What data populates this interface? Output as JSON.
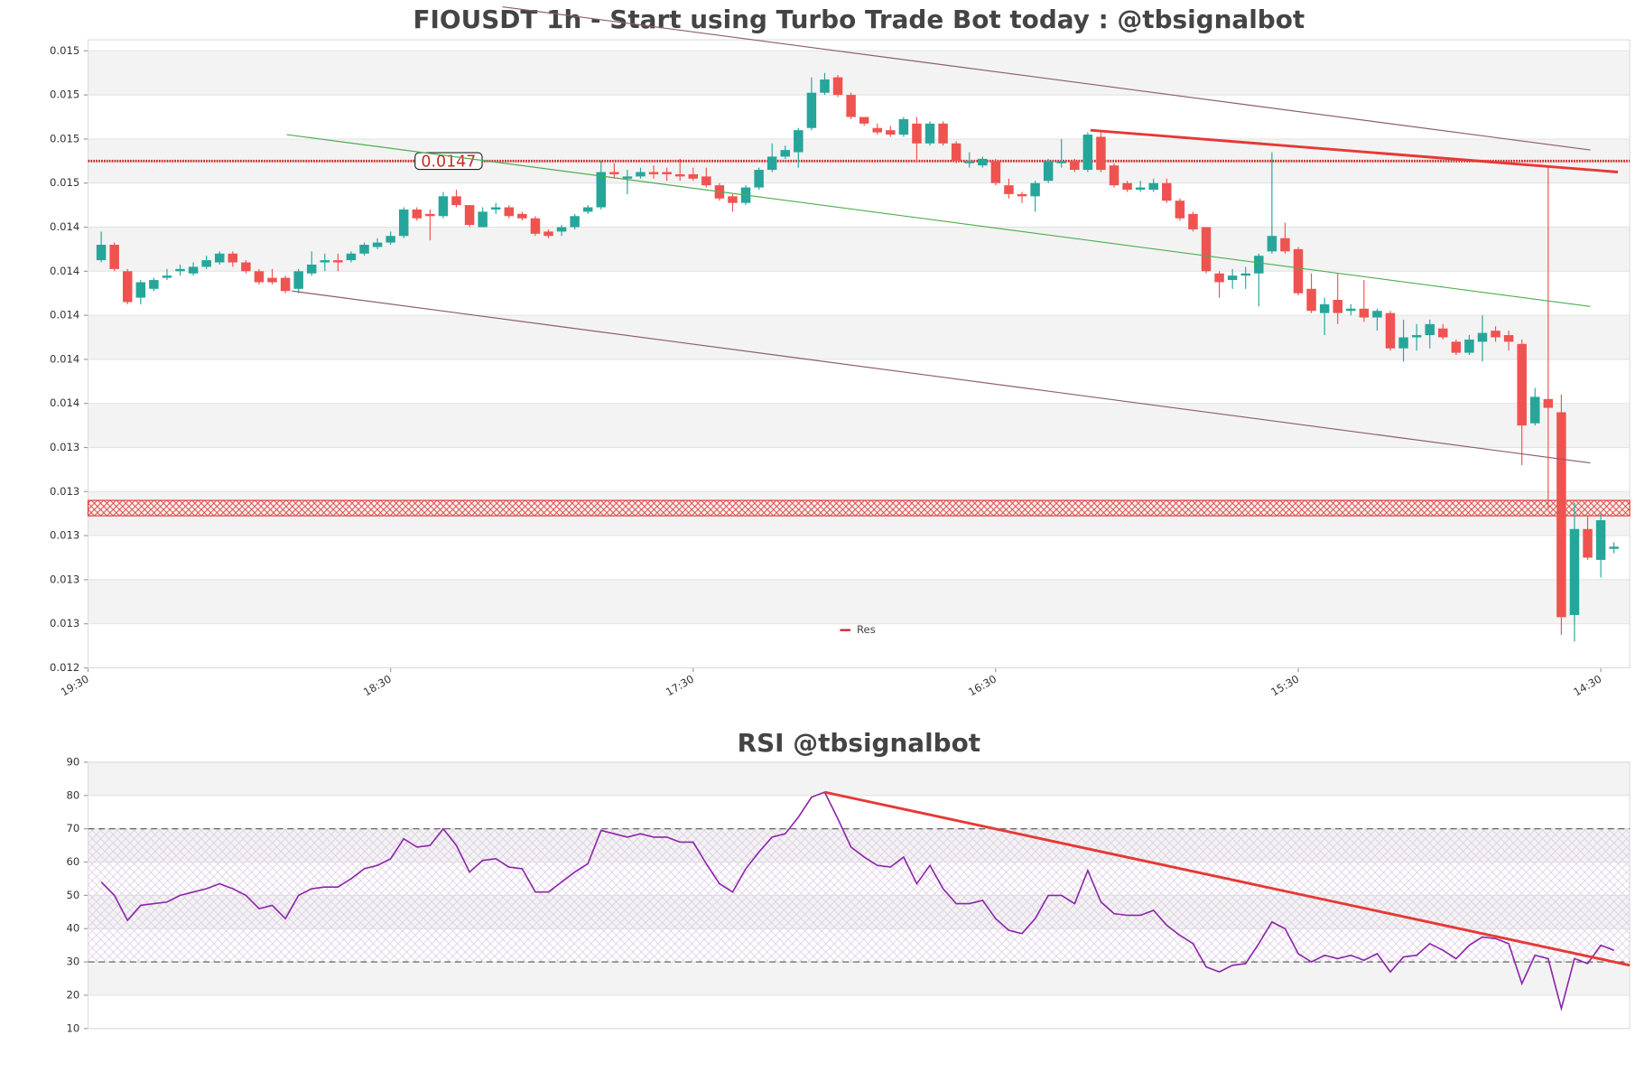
{
  "chart_data": [
    {
      "type": "candlestick",
      "title": "FIOUSDT 1h - Start using Turbo Trade Bot today : @tbsignalbot",
      "up_color": "#26a69a",
      "down_color": "#ef5350",
      "open": [
        0.01425,
        0.01432,
        0.0142,
        0.01408,
        0.01412,
        0.01417,
        0.0142,
        0.01419,
        0.01422,
        0.01424,
        0.01428,
        0.01424,
        0.0142,
        0.01417,
        0.01417,
        0.01412,
        0.01419,
        0.01424,
        0.01425,
        0.01425,
        0.01428,
        0.01431,
        0.01433,
        0.01436,
        0.01448,
        0.01446,
        0.01445,
        0.01454,
        0.0145,
        0.0144,
        0.01448,
        0.01449,
        0.01446,
        0.01444,
        0.01438,
        0.01438,
        0.0144,
        0.01447,
        0.01449,
        0.01465,
        0.01462,
        0.01463,
        0.01465,
        0.01465,
        0.01464,
        0.01464,
        0.01463,
        0.01459,
        0.01454,
        0.01451,
        0.01458,
        0.01466,
        0.01472,
        0.01474,
        0.01485,
        0.01501,
        0.01508,
        0.015,
        0.0149,
        0.01485,
        0.01484,
        0.01482,
        0.01487,
        0.01478,
        0.01487,
        0.01478,
        0.01469,
        0.01468,
        0.0147,
        0.01459,
        0.01455,
        0.01454,
        0.01461,
        0.01469,
        0.0147,
        0.01466,
        0.01481,
        0.01468,
        0.0146,
        0.01457,
        0.01457,
        0.0146,
        0.01452,
        0.01446,
        0.0144,
        0.01419,
        0.01416,
        0.01418,
        0.01419,
        0.01429,
        0.01435,
        0.0143,
        0.01412,
        0.01401,
        0.01407,
        0.01402,
        0.01403,
        0.01399,
        0.01401,
        0.01385,
        0.0139,
        0.01391,
        0.01394,
        0.01388,
        0.01383,
        0.01388,
        0.01393,
        0.01391,
        0.01387,
        0.01351,
        0.01362,
        0.01356,
        0.01264,
        0.01303,
        0.01289,
        0.01294
      ],
      "high": [
        0.01438,
        0.01433,
        0.01421,
        0.01416,
        0.01417,
        0.01421,
        0.01423,
        0.01424,
        0.01427,
        0.01429,
        0.01429,
        0.01425,
        0.01421,
        0.01421,
        0.01418,
        0.01421,
        0.01429,
        0.01428,
        0.01428,
        0.01429,
        0.01433,
        0.01435,
        0.01438,
        0.01449,
        0.01449,
        0.01448,
        0.01456,
        0.01457,
        0.0145,
        0.01449,
        0.01451,
        0.0145,
        0.01447,
        0.01445,
        0.01439,
        0.01441,
        0.01446,
        0.0145,
        0.0147,
        0.01469,
        0.01466,
        0.01467,
        0.01468,
        0.01467,
        0.01471,
        0.01467,
        0.01467,
        0.0146,
        0.01455,
        0.01459,
        0.01467,
        0.01478,
        0.01477,
        0.01485,
        0.01508,
        0.0151,
        0.01509,
        0.01501,
        0.0149,
        0.01487,
        0.01486,
        0.0149,
        0.0149,
        0.01488,
        0.01488,
        0.01479,
        0.01474,
        0.01472,
        0.01471,
        0.01462,
        0.01456,
        0.01461,
        0.01471,
        0.0148,
        0.01471,
        0.01483,
        0.01484,
        0.01469,
        0.01461,
        0.01461,
        0.01462,
        0.01462,
        0.01453,
        0.01447,
        0.0144,
        0.0142,
        0.01421,
        0.01422,
        0.01428,
        0.01474,
        0.01442,
        0.01431,
        0.01419,
        0.01408,
        0.01419,
        0.01405,
        0.01416,
        0.01403,
        0.01402,
        0.01398,
        0.01396,
        0.01398,
        0.01396,
        0.01389,
        0.01391,
        0.014,
        0.01395,
        0.01393,
        0.01389,
        0.01367,
        0.01467,
        0.01364,
        0.01315,
        0.01309,
        0.0131,
        0.01297
      ],
      "low": [
        0.01424,
        0.0142,
        0.01405,
        0.01405,
        0.01411,
        0.01416,
        0.01418,
        0.01418,
        0.01421,
        0.01423,
        0.01422,
        0.01419,
        0.01414,
        0.01414,
        0.0141,
        0.0141,
        0.01418,
        0.0142,
        0.0142,
        0.01424,
        0.01427,
        0.0143,
        0.01432,
        0.01435,
        0.01443,
        0.01434,
        0.01444,
        0.01449,
        0.0144,
        0.0144,
        0.01446,
        0.01444,
        0.01443,
        0.01436,
        0.01435,
        0.01436,
        0.01439,
        0.01446,
        0.01448,
        0.01462,
        0.01455,
        0.01462,
        0.01462,
        0.01461,
        0.01461,
        0.01461,
        0.01458,
        0.01452,
        0.01447,
        0.0145,
        0.01457,
        0.01465,
        0.01471,
        0.01467,
        0.01484,
        0.015,
        0.01499,
        0.01489,
        0.01486,
        0.01482,
        0.01481,
        0.01481,
        0.0147,
        0.01477,
        0.01477,
        0.01469,
        0.01467,
        0.01467,
        0.01459,
        0.01453,
        0.01451,
        0.01447,
        0.0146,
        0.01467,
        0.01465,
        0.01465,
        0.01465,
        0.01458,
        0.01456,
        0.01456,
        0.01456,
        0.01451,
        0.01443,
        0.01438,
        0.01419,
        0.01408,
        0.01412,
        0.01412,
        0.01404,
        0.01428,
        0.01428,
        0.01409,
        0.01401,
        0.01391,
        0.01396,
        0.014,
        0.01397,
        0.01393,
        0.01384,
        0.01379,
        0.01384,
        0.01385,
        0.01389,
        0.01382,
        0.01382,
        0.01379,
        0.01388,
        0.01384,
        0.01332,
        0.0135,
        0.01312,
        0.01255,
        0.01252,
        0.01289,
        0.01281,
        0.01292
      ],
      "close": [
        0.01432,
        0.01421,
        0.01406,
        0.01415,
        0.01416,
        0.01418,
        0.01421,
        0.01422,
        0.01425,
        0.01428,
        0.01424,
        0.0142,
        0.01415,
        0.01415,
        0.01411,
        0.0142,
        0.01423,
        0.01425,
        0.01424,
        0.01428,
        0.01432,
        0.01433,
        0.01436,
        0.01448,
        0.01444,
        0.01445,
        0.01454,
        0.0145,
        0.01441,
        0.01447,
        0.01449,
        0.01445,
        0.01444,
        0.01437,
        0.01436,
        0.0144,
        0.01445,
        0.01449,
        0.01465,
        0.01464,
        0.01463,
        0.01465,
        0.01464,
        0.01464,
        0.01463,
        0.01462,
        0.01459,
        0.01453,
        0.01451,
        0.01458,
        0.01466,
        0.01472,
        0.01475,
        0.01484,
        0.01501,
        0.01507,
        0.015,
        0.0149,
        0.01487,
        0.01483,
        0.01482,
        0.01489,
        0.01478,
        0.01487,
        0.01478,
        0.0147,
        0.0147,
        0.01471,
        0.0146,
        0.01455,
        0.01454,
        0.0146,
        0.0147,
        0.0147,
        0.01466,
        0.01482,
        0.01466,
        0.01459,
        0.01457,
        0.01458,
        0.0146,
        0.01452,
        0.01444,
        0.01439,
        0.0142,
        0.01415,
        0.01418,
        0.01419,
        0.01427,
        0.01436,
        0.01429,
        0.0141,
        0.01402,
        0.01405,
        0.01401,
        0.01403,
        0.01399,
        0.01402,
        0.01385,
        0.0139,
        0.01391,
        0.01396,
        0.0139,
        0.01383,
        0.01389,
        0.01392,
        0.0139,
        0.01388,
        0.0135,
        0.01363,
        0.01358,
        0.01263,
        0.01303,
        0.0129,
        0.01307,
        0.01295
      ],
      "xlim": [
        -1,
        116.2
      ],
      "xticks": [
        {
          "value": -1,
          "label": "19:30"
        },
        {
          "value": 22,
          "label": "18:30"
        },
        {
          "value": 45,
          "label": "17:30"
        },
        {
          "value": 68,
          "label": "16:30"
        },
        {
          "value": 91,
          "label": "15:30"
        },
        {
          "value": 114,
          "label": "14:30"
        }
      ],
      "ylim": [
        0.0124,
        0.01525
      ],
      "yticks": [
        {
          "value": 0.0124,
          "label": "0.012"
        },
        {
          "value": 0.0126,
          "label": "0.013"
        },
        {
          "value": 0.0128,
          "label": "0.013"
        },
        {
          "value": 0.013,
          "label": "0.013"
        },
        {
          "value": 0.0132,
          "label": "0.013"
        },
        {
          "value": 0.0134,
          "label": "0.013"
        },
        {
          "value": 0.0136,
          "label": "0.014"
        },
        {
          "value": 0.0138,
          "label": "0.014"
        },
        {
          "value": 0.014,
          "label": "0.014"
        },
        {
          "value": 0.0142,
          "label": "0.014"
        },
        {
          "value": 0.0144,
          "label": "0.014"
        },
        {
          "value": 0.0146,
          "label": "0.015"
        },
        {
          "value": 0.0148,
          "label": "0.015"
        },
        {
          "value": 0.015,
          "label": "0.015"
        },
        {
          "value": 0.0152,
          "label": "0.015"
        }
      ],
      "grid": true,
      "levels": [
        {
          "name": "Res",
          "value": 0.0147,
          "color": "#c62828"
        }
      ],
      "zones": [
        {
          "low": 0.01309,
          "high": 0.01316,
          "color": "#e53935"
        }
      ],
      "trendlines": [
        {
          "x": [
            30.5,
            113.2
          ],
          "y": [
            0.0154,
            0.01475
          ],
          "color": "#8d5c6a"
        },
        {
          "x": [
            14.5,
            113.2
          ],
          "y": [
            0.01411,
            0.01333
          ],
          "color": "#8d5c6a"
        },
        {
          "x": [
            14.1,
            113.2
          ],
          "y": [
            0.01482,
            0.01404
          ],
          "color": "#4caf50"
        },
        {
          "x": [
            75.2,
            115.3
          ],
          "y": [
            0.01484,
            0.01465
          ],
          "color": "#e53935",
          "style": "bold"
        }
      ],
      "legend": "bottom"
    },
    {
      "type": "line",
      "title": "RSI @tbsignalbot",
      "series": [
        {
          "color": "#8e24aa",
          "values": [
            54,
            50,
            42.5,
            47,
            47.5,
            48,
            50,
            51,
            52,
            53.5,
            52,
            50,
            46,
            47,
            43,
            50,
            52,
            52.5,
            52.5,
            55,
            58,
            59,
            61,
            67,
            64.5,
            65,
            70,
            65,
            57,
            60.5,
            61,
            58.5,
            58,
            51,
            51,
            54,
            57,
            59.5,
            69.5,
            68.5,
            67.5,
            68.5,
            67.5,
            67.5,
            66,
            66,
            59.5,
            53.5,
            51,
            58,
            63,
            67.5,
            68.5,
            73.5,
            79.5,
            81,
            73,
            64.5,
            61.5,
            59,
            58.5,
            61.5,
            53.5,
            59,
            52,
            47.5,
            47.5,
            48.5,
            43,
            39.5,
            38.5,
            43,
            50,
            50,
            47.5,
            57.5,
            48,
            44.5,
            44,
            44,
            45.5,
            41,
            38,
            35.5,
            28.5,
            27,
            29,
            29.5,
            35.5,
            42,
            40,
            32.5,
            30,
            32,
            31,
            32,
            30.5,
            32.5,
            27,
            31.5,
            32,
            35.5,
            33.5,
            31,
            35,
            37.5,
            37,
            35.5,
            23.5,
            32,
            31,
            16,
            31,
            29.5,
            35,
            33.5
          ]
        }
      ],
      "xlim": [
        -1,
        116.2
      ],
      "ylim": [
        10,
        90
      ],
      "yticks": [
        10,
        20,
        30,
        40,
        50,
        60,
        70,
        80,
        90
      ],
      "grid": true,
      "levels": [
        30,
        70
      ],
      "band": [
        30,
        70
      ],
      "trendlines": [
        {
          "x": [
            55,
            116.2
          ],
          "y": [
            81,
            29
          ],
          "color": "#e53935",
          "style": "bold"
        }
      ]
    }
  ]
}
